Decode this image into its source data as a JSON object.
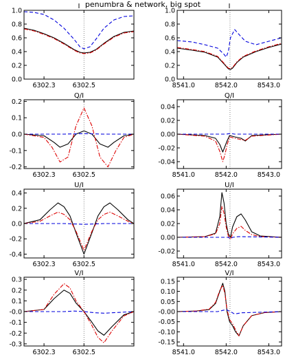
{
  "figure": {
    "title": "penumbra & network, big spot"
  },
  "line_colors": {
    "observed": "#000000",
    "model_red": "#dd0000",
    "model_blue": "#0000dd",
    "reference_line": "#666666"
  },
  "chart_data": [
    {
      "type": "line",
      "title": "I",
      "xlim": [
        6302.2,
        6302.75
      ],
      "ylim": [
        0.0,
        1.0
      ],
      "xticks": [
        6302.3,
        6302.5
      ],
      "xtick_labels": [
        "6302.3",
        "6302.5"
      ],
      "yticks": [
        0.0,
        0.2,
        0.4,
        0.6,
        0.8,
        1.0
      ],
      "ytick_labels": [
        "0.0",
        "0.2",
        "0.4",
        "0.6",
        "0.8",
        "1.0"
      ],
      "ref_x": 6302.5,
      "series": [
        {
          "style": "solid",
          "color": "black",
          "x": [
            6302.2,
            6302.25,
            6302.3,
            6302.35,
            6302.4,
            6302.45,
            6302.48,
            6302.5,
            6302.53,
            6302.56,
            6302.6,
            6302.65,
            6302.7,
            6302.75
          ],
          "y": [
            0.74,
            0.71,
            0.66,
            0.6,
            0.52,
            0.43,
            0.39,
            0.38,
            0.39,
            0.43,
            0.52,
            0.62,
            0.68,
            0.7
          ]
        },
        {
          "style": "dashdot",
          "color": "red",
          "x": [
            6302.2,
            6302.25,
            6302.3,
            6302.35,
            6302.4,
            6302.45,
            6302.48,
            6302.5,
            6302.53,
            6302.56,
            6302.6,
            6302.65,
            6302.7,
            6302.75
          ],
          "y": [
            0.73,
            0.7,
            0.65,
            0.59,
            0.51,
            0.42,
            0.38,
            0.37,
            0.38,
            0.42,
            0.51,
            0.61,
            0.67,
            0.69
          ]
        },
        {
          "style": "dashed",
          "color": "blue",
          "x": [
            6302.2,
            6302.25,
            6302.3,
            6302.35,
            6302.4,
            6302.45,
            6302.48,
            6302.5,
            6302.53,
            6302.56,
            6302.6,
            6302.65,
            6302.7,
            6302.75
          ],
          "y": [
            0.98,
            0.97,
            0.94,
            0.86,
            0.74,
            0.58,
            0.47,
            0.44,
            0.47,
            0.58,
            0.74,
            0.86,
            0.91,
            0.92
          ]
        }
      ]
    },
    {
      "type": "line",
      "title": "I",
      "xlim": [
        8540.85,
        8543.3
      ],
      "ylim": [
        0.0,
        1.0
      ],
      "xticks": [
        8541.0,
        8542.0,
        8543.0
      ],
      "xtick_labels": [
        "8541.0",
        "8542.0",
        "8543.0"
      ],
      "yticks": [
        0.0,
        0.2,
        0.4,
        0.6,
        0.8,
        1.0
      ],
      "ytick_labels": [
        "0.0",
        "0.2",
        "0.4",
        "0.6",
        "0.8",
        "1.0"
      ],
      "ref_x": 8542.09,
      "series": [
        {
          "style": "solid",
          "color": "black",
          "x": [
            8540.85,
            8541.2,
            8541.5,
            8541.8,
            8541.95,
            8542.05,
            8542.1,
            8542.15,
            8542.25,
            8542.4,
            8542.7,
            8543.0,
            8543.3
          ],
          "y": [
            0.45,
            0.42,
            0.39,
            0.32,
            0.22,
            0.15,
            0.14,
            0.16,
            0.24,
            0.32,
            0.4,
            0.46,
            0.51
          ]
        },
        {
          "style": "dashdot",
          "color": "red",
          "x": [
            8540.85,
            8541.2,
            8541.5,
            8541.8,
            8541.95,
            8542.05,
            8542.1,
            8542.15,
            8542.25,
            8542.4,
            8542.7,
            8543.0,
            8543.3
          ],
          "y": [
            0.46,
            0.43,
            0.4,
            0.33,
            0.23,
            0.16,
            0.15,
            0.17,
            0.25,
            0.33,
            0.41,
            0.47,
            0.52
          ]
        },
        {
          "style": "dashed",
          "color": "blue",
          "x": [
            8540.85,
            8541.2,
            8541.5,
            8541.8,
            8541.95,
            8542.0,
            8542.05,
            8542.1,
            8542.2,
            8542.3,
            8542.45,
            8542.7,
            8543.0,
            8543.3
          ],
          "y": [
            0.56,
            0.54,
            0.5,
            0.45,
            0.36,
            0.32,
            0.4,
            0.6,
            0.72,
            0.65,
            0.55,
            0.5,
            0.55,
            0.6
          ]
        }
      ]
    },
    {
      "type": "line",
      "title": "Q/I",
      "xlim": [
        6302.2,
        6302.75
      ],
      "ylim": [
        -0.21,
        0.21
      ],
      "xticks": [
        6302.3,
        6302.5
      ],
      "xtick_labels": [
        "6302.3",
        "6302.5"
      ],
      "yticks": [
        -0.2,
        -0.1,
        0.0,
        0.1,
        0.2
      ],
      "ytick_labels": [
        "-0.2",
        "-0.1",
        "0.0",
        "0.1",
        "0.2"
      ],
      "ref_x": 6302.5,
      "series": [
        {
          "style": "solid",
          "color": "black",
          "x": [
            6302.2,
            6302.3,
            6302.35,
            6302.38,
            6302.42,
            6302.46,
            6302.5,
            6302.54,
            6302.58,
            6302.62,
            6302.65,
            6302.7,
            6302.75
          ],
          "y": [
            0.0,
            -0.01,
            -0.05,
            -0.08,
            -0.06,
            0.0,
            0.02,
            0.0,
            -0.06,
            -0.08,
            -0.05,
            -0.01,
            0.0
          ]
        },
        {
          "style": "dashdot",
          "color": "red",
          "x": [
            6302.2,
            6302.3,
            6302.34,
            6302.38,
            6302.42,
            6302.46,
            6302.5,
            6302.54,
            6302.58,
            6302.62,
            6302.66,
            6302.7,
            6302.75
          ],
          "y": [
            0.0,
            -0.02,
            -0.08,
            -0.17,
            -0.14,
            0.05,
            0.16,
            0.05,
            -0.14,
            -0.2,
            -0.1,
            -0.02,
            0.0
          ]
        },
        {
          "style": "dashed",
          "color": "blue",
          "x": [
            6302.2,
            6302.4,
            6302.5,
            6302.6,
            6302.75
          ],
          "y": [
            0.0,
            0.0,
            0.003,
            0.0,
            0.0
          ]
        }
      ]
    },
    {
      "type": "line",
      "title": "Q/I",
      "xlim": [
        8540.85,
        8543.3
      ],
      "ylim": [
        -0.05,
        0.05
      ],
      "xticks": [
        8541.0,
        8542.0,
        8543.0
      ],
      "xtick_labels": [
        "8541.0",
        "8542.0",
        "8543.0"
      ],
      "yticks": [
        -0.04,
        -0.02,
        0.0,
        0.02,
        0.04
      ],
      "ytick_labels": [
        "-0.04",
        "-0.02",
        "0.00",
        "0.02",
        "0.04"
      ],
      "ref_x": 8542.09,
      "series": [
        {
          "style": "solid",
          "color": "black",
          "x": [
            8540.85,
            8541.5,
            8541.75,
            8541.85,
            8541.92,
            8541.97,
            8542.02,
            8542.08,
            8542.2,
            8542.35,
            8542.45,
            8542.6,
            8543.3
          ],
          "y": [
            0.0,
            -0.002,
            -0.006,
            -0.015,
            -0.026,
            -0.018,
            -0.01,
            -0.002,
            -0.004,
            -0.006,
            -0.01,
            -0.002,
            0.0
          ]
        },
        {
          "style": "dashdot",
          "color": "red",
          "x": [
            8540.85,
            8541.5,
            8541.75,
            8541.85,
            8541.92,
            8541.97,
            8542.02,
            8542.08,
            8542.2,
            8542.35,
            8542.45,
            8542.6,
            8543.3
          ],
          "y": [
            0.0,
            -0.003,
            -0.01,
            -0.025,
            -0.04,
            -0.03,
            -0.016,
            -0.004,
            -0.006,
            -0.008,
            -0.009,
            -0.003,
            0.0
          ]
        },
        {
          "style": "dashed",
          "color": "blue",
          "x": [
            8540.85,
            8542.0,
            8542.1,
            8542.2,
            8543.3
          ],
          "y": [
            0.0,
            0.0,
            0.001,
            0.0,
            0.0
          ]
        }
      ]
    },
    {
      "type": "line",
      "title": "U/I",
      "xlim": [
        6302.2,
        6302.75
      ],
      "ylim": [
        -0.45,
        0.45
      ],
      "xticks": [
        6302.3,
        6302.5
      ],
      "xtick_labels": [
        "6302.3",
        "6302.5"
      ],
      "yticks": [
        -0.4,
        -0.2,
        0.0,
        0.2,
        0.4
      ],
      "ytick_labels": [
        "-0.4",
        "-0.2",
        "0.0",
        "0.2",
        "0.4"
      ],
      "ref_x": 6302.5,
      "series": [
        {
          "style": "solid",
          "color": "black",
          "x": [
            6302.2,
            6302.28,
            6302.33,
            6302.37,
            6302.4,
            6302.43,
            6302.46,
            6302.5,
            6302.54,
            6302.57,
            6302.6,
            6302.63,
            6302.67,
            6302.72,
            6302.75
          ],
          "y": [
            0.0,
            0.05,
            0.18,
            0.27,
            0.22,
            0.1,
            -0.12,
            -0.4,
            -0.12,
            0.1,
            0.22,
            0.27,
            0.18,
            0.05,
            0.0
          ]
        },
        {
          "style": "dashdot",
          "color": "red",
          "x": [
            6302.2,
            6302.28,
            6302.33,
            6302.37,
            6302.4,
            6302.43,
            6302.46,
            6302.5,
            6302.54,
            6302.57,
            6302.6,
            6302.63,
            6302.67,
            6302.72,
            6302.75
          ],
          "y": [
            0.0,
            0.03,
            0.1,
            0.15,
            0.12,
            0.05,
            -0.1,
            -0.35,
            -0.1,
            0.05,
            0.12,
            0.15,
            0.1,
            0.03,
            0.0
          ]
        },
        {
          "style": "dashed",
          "color": "blue",
          "x": [
            6302.2,
            6302.4,
            6302.5,
            6302.6,
            6302.75
          ],
          "y": [
            0.0,
            0.0,
            -0.01,
            0.0,
            0.0
          ]
        }
      ]
    },
    {
      "type": "line",
      "title": "U/I",
      "xlim": [
        8540.85,
        8543.3
      ],
      "ylim": [
        -0.03,
        0.07
      ],
      "xticks": [
        8541.0,
        8542.0,
        8543.0
      ],
      "xtick_labels": [
        "8541.0",
        "8542.0",
        "8543.0"
      ],
      "yticks": [
        -0.02,
        0.0,
        0.02,
        0.04,
        0.06
      ],
      "ytick_labels": [
        "-0.02",
        "0.00",
        "0.02",
        "0.04",
        "0.06"
      ],
      "ref_x": 8542.09,
      "series": [
        {
          "style": "solid",
          "color": "black",
          "x": [
            8540.85,
            8541.5,
            8541.75,
            8541.85,
            8541.9,
            8541.95,
            8542.0,
            8542.05,
            8542.1,
            8542.15,
            8542.25,
            8542.35,
            8542.45,
            8542.6,
            8542.8,
            8543.3
          ],
          "y": [
            0.0,
            0.001,
            0.006,
            0.03,
            0.065,
            0.05,
            0.02,
            0.005,
            0.0,
            0.015,
            0.03,
            0.034,
            0.025,
            0.008,
            0.002,
            0.0
          ]
        },
        {
          "style": "dashdot",
          "color": "red",
          "x": [
            8540.85,
            8541.5,
            8541.75,
            8541.85,
            8541.9,
            8541.95,
            8542.0,
            8542.05,
            8542.1,
            8542.15,
            8542.25,
            8542.35,
            8542.45,
            8542.6,
            8542.8,
            8543.3
          ],
          "y": [
            0.0,
            0.001,
            0.005,
            0.02,
            0.045,
            0.035,
            0.015,
            0.002,
            -0.003,
            0.005,
            0.013,
            0.016,
            0.01,
            0.004,
            0.001,
            0.0
          ]
        },
        {
          "style": "dashed",
          "color": "blue",
          "x": [
            8540.85,
            8541.9,
            8542.05,
            8542.1,
            8542.15,
            8542.3,
            8543.3
          ],
          "y": [
            0.0,
            0.0,
            0.0,
            -0.002,
            0.0,
            0.001,
            0.0
          ]
        }
      ]
    },
    {
      "type": "line",
      "title": "V/I",
      "xlim": [
        6302.2,
        6302.75
      ],
      "ylim": [
        -0.32,
        0.32
      ],
      "xticks": [
        6302.3,
        6302.5
      ],
      "xtick_labels": [
        "6302.3",
        "6302.5"
      ],
      "yticks": [
        -0.3,
        -0.2,
        -0.1,
        0.0,
        0.1,
        0.2,
        0.3
      ],
      "ytick_labels": [
        "-0.3",
        "-0.2",
        "-0.1",
        "-0.0",
        "0.1",
        "0.2",
        "0.3"
      ],
      "ref_x": 6302.5,
      "series": [
        {
          "style": "solid",
          "color": "black",
          "x": [
            6302.2,
            6302.3,
            6302.35,
            6302.4,
            6302.43,
            6302.46,
            6302.5,
            6302.54,
            6302.57,
            6302.6,
            6302.64,
            6302.7,
            6302.75
          ],
          "y": [
            0.0,
            0.02,
            0.12,
            0.2,
            0.17,
            0.08,
            0.0,
            -0.1,
            -0.18,
            -0.22,
            -0.14,
            -0.03,
            0.0
          ]
        },
        {
          "style": "dashdot",
          "color": "red",
          "x": [
            6302.2,
            6302.3,
            6302.35,
            6302.4,
            6302.43,
            6302.46,
            6302.5,
            6302.54,
            6302.57,
            6302.6,
            6302.64,
            6302.7,
            6302.75
          ],
          "y": [
            0.0,
            0.02,
            0.16,
            0.26,
            0.22,
            0.1,
            0.0,
            -0.13,
            -0.24,
            -0.29,
            -0.18,
            -0.04,
            0.0
          ]
        },
        {
          "style": "dashed",
          "color": "blue",
          "x": [
            6302.2,
            6302.4,
            6302.45,
            6302.5,
            6302.55,
            6302.6,
            6302.75
          ],
          "y": [
            0.0,
            0.0,
            0.005,
            0.0,
            -0.01,
            -0.015,
            0.0
          ]
        }
      ]
    },
    {
      "type": "line",
      "title": "V/I",
      "xlim": [
        8540.85,
        8543.3
      ],
      "ylim": [
        -0.17,
        0.17
      ],
      "xticks": [
        8541.0,
        8542.0,
        8543.0
      ],
      "xtick_labels": [
        "8541.0",
        "8542.0",
        "8543.0"
      ],
      "yticks": [
        -0.15,
        -0.1,
        -0.05,
        0.0,
        0.05,
        0.1,
        0.15
      ],
      "ytick_labels": [
        "-0.15",
        "-0.10",
        "-0.05",
        "-0.00",
        "0.05",
        "0.10",
        "0.15"
      ],
      "ref_x": 8542.09,
      "series": [
        {
          "style": "solid",
          "color": "black",
          "x": [
            8540.85,
            8541.3,
            8541.6,
            8541.75,
            8541.85,
            8541.92,
            8541.97,
            8542.02,
            8542.08,
            8542.15,
            8542.22,
            8542.3,
            8542.4,
            8542.6,
            8542.9,
            8543.3
          ],
          "y": [
            0.0,
            0.003,
            0.01,
            0.04,
            0.1,
            0.14,
            0.1,
            0.0,
            -0.05,
            -0.07,
            -0.1,
            -0.12,
            -0.07,
            -0.02,
            -0.005,
            0.0
          ]
        },
        {
          "style": "dashdot",
          "color": "red",
          "x": [
            8540.85,
            8541.3,
            8541.6,
            8541.75,
            8541.85,
            8541.92,
            8541.97,
            8542.02,
            8542.08,
            8542.15,
            8542.22,
            8542.3,
            8542.4,
            8542.6,
            8542.9,
            8543.3
          ],
          "y": [
            0.0,
            0.003,
            0.012,
            0.045,
            0.105,
            0.13,
            0.09,
            0.01,
            -0.04,
            -0.06,
            -0.09,
            -0.12,
            -0.07,
            -0.02,
            -0.005,
            0.0
          ]
        },
        {
          "style": "dashed",
          "color": "blue",
          "x": [
            8540.85,
            8541.8,
            8542.0,
            8542.1,
            8542.2,
            8542.35,
            8543.3
          ],
          "y": [
            0.0,
            0.0,
            0.01,
            0.0,
            -0.012,
            -0.006,
            0.0
          ]
        }
      ]
    }
  ]
}
